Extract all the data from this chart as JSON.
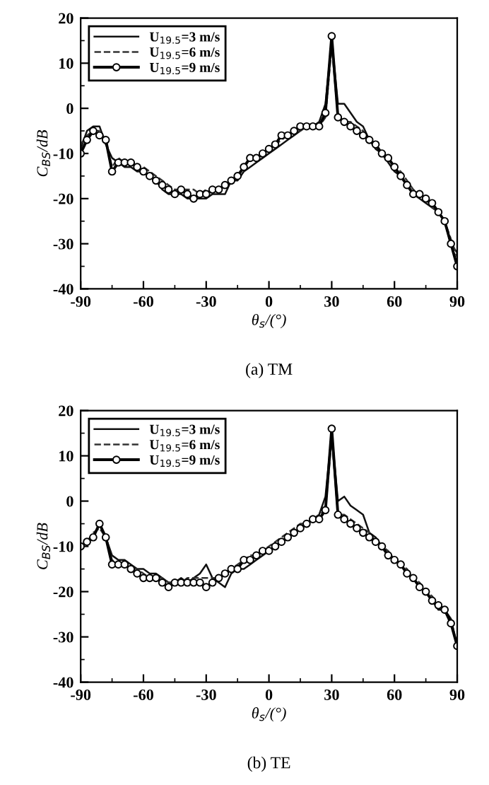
{
  "chart_data": [
    {
      "type": "line",
      "title": "(a) TM",
      "xlabel": "θ$_{s}$/(°)",
      "ylabel": "C$_{BS}$/dB",
      "x": [
        -90,
        -87,
        -84,
        -81,
        -78,
        -75,
        -72,
        -69,
        -66,
        -63,
        -60,
        -57,
        -54,
        -51,
        -48,
        -45,
        -42,
        -39,
        -36,
        -33,
        -30,
        -27,
        -24,
        -21,
        -18,
        -15,
        -12,
        -9,
        -6,
        -3,
        0,
        3,
        6,
        9,
        12,
        15,
        18,
        21,
        24,
        27,
        30,
        33,
        36,
        39,
        42,
        45,
        48,
        51,
        54,
        57,
        60,
        63,
        66,
        69,
        72,
        75,
        78,
        81,
        84,
        87,
        90
      ],
      "xlim": [
        -90,
        90
      ],
      "xticks": [
        -90,
        -60,
        -30,
        0,
        30,
        60,
        90
      ],
      "ylim": [
        -40,
        20
      ],
      "yticks": [
        -40,
        -30,
        -20,
        -10,
        0,
        10,
        20
      ],
      "grid": false,
      "legend": "top left",
      "series": [
        {
          "name": "U$_{19.5}$=3 m/s",
          "color": "#111111",
          "line_style": "solid",
          "marker": "none",
          "values": [
            -9,
            -5,
            -4,
            -4,
            -8,
            -11,
            -12,
            -13,
            -13,
            -14,
            -14,
            -15,
            -16,
            -18,
            -19,
            -19,
            -19,
            -20,
            -20,
            -20,
            -20,
            -19,
            -19,
            -19,
            -16,
            -16,
            -14,
            -13,
            -12,
            -11,
            -10,
            -9,
            -8,
            -7,
            -6,
            -5,
            -4,
            -4,
            -3,
            1,
            15,
            1,
            1,
            -1,
            -3,
            -4,
            -7,
            -9,
            -10,
            -12,
            -14,
            -15,
            -17,
            -19,
            -20,
            -21,
            -22,
            -23,
            -25,
            -30,
            -32
          ]
        },
        {
          "name": "U$_{19.5}$=6 m/s",
          "color": "#333333",
          "line_style": "dashed",
          "marker": "none",
          "values": [
            -8,
            -6,
            -5,
            -5,
            -7,
            -13,
            -11,
            -12,
            -12,
            -13,
            -13,
            -14,
            -15,
            -16,
            -17,
            -18,
            -18,
            -18,
            -18,
            -19,
            -18,
            -18,
            -18,
            -17,
            -16,
            -15,
            -13,
            -11,
            -11,
            -10,
            -9,
            -8,
            -7,
            -6,
            -5,
            -5,
            -4,
            -4,
            -4,
            -2,
            14,
            -2,
            -3,
            -3,
            -4,
            -5,
            -7,
            -8,
            -10,
            -11,
            -13,
            -14,
            -16,
            -18,
            -19,
            -20,
            -22,
            -23,
            -25,
            -29,
            -33
          ]
        },
        {
          "name": "U$_{19.5}$=9 m/s",
          "color": "#000000",
          "line_style": "solid",
          "marker": "circle",
          "values": [
            -10,
            -7,
            -5,
            -6,
            -7,
            -14,
            -12,
            -12,
            -12,
            -13,
            -14,
            -15,
            -16,
            -17,
            -18,
            -19,
            -18,
            -19,
            -20,
            -19,
            -19,
            -18,
            -18,
            -17,
            -16,
            -15,
            -13,
            -11,
            -11,
            -10,
            -9,
            -8,
            -6,
            -6,
            -5,
            -4,
            -4,
            -4,
            -4,
            -1,
            16,
            -2,
            -3,
            -4,
            -5,
            -6,
            -7,
            -8,
            -10,
            -11,
            -13,
            -15,
            -17,
            -19,
            -19,
            -20,
            -21,
            -23,
            -25,
            -30,
            -35
          ]
        }
      ]
    },
    {
      "type": "line",
      "title": "(b) TE",
      "xlabel": "θ$_{s}$/(°)",
      "ylabel": "C$_{BS}$/dB",
      "x": [
        -90,
        -87,
        -84,
        -81,
        -78,
        -75,
        -72,
        -69,
        -66,
        -63,
        -60,
        -57,
        -54,
        -51,
        -48,
        -45,
        -42,
        -39,
        -36,
        -33,
        -30,
        -27,
        -24,
        -21,
        -18,
        -15,
        -12,
        -9,
        -6,
        -3,
        0,
        3,
        6,
        9,
        12,
        15,
        18,
        21,
        24,
        27,
        30,
        33,
        36,
        39,
        42,
        45,
        48,
        51,
        54,
        57,
        60,
        63,
        66,
        69,
        72,
        75,
        78,
        81,
        84,
        87,
        90
      ],
      "xlim": [
        -90,
        90
      ],
      "xticks": [
        -90,
        -60,
        -30,
        0,
        30,
        60,
        90
      ],
      "ylim": [
        -40,
        20
      ],
      "yticks": [
        -40,
        -30,
        -20,
        -10,
        0,
        10,
        20
      ],
      "grid": false,
      "legend": "top left",
      "series": [
        {
          "name": "U$_{19.5}$=3 m/s",
          "color": "#111111",
          "line_style": "solid",
          "marker": "none",
          "values": [
            -10,
            -9,
            -8,
            -5,
            -8,
            -12,
            -13,
            -13,
            -14,
            -15,
            -15,
            -16,
            -16,
            -17,
            -18,
            -18,
            -17,
            -18,
            -17,
            -16,
            -14,
            -17,
            -18,
            -19,
            -16,
            -15,
            -15,
            -14,
            -13,
            -12,
            -11,
            -10,
            -9,
            -8,
            -7,
            -6,
            -5,
            -4,
            -3,
            1,
            15,
            0,
            1,
            -1,
            -2,
            -3,
            -7,
            -8,
            -10,
            -12,
            -13,
            -14,
            -16,
            -17,
            -19,
            -20,
            -22,
            -24,
            -24,
            -26,
            -32
          ]
        },
        {
          "name": "U$_{19.5}$=6 m/s",
          "color": "#333333",
          "line_style": "dashed",
          "marker": "none",
          "values": [
            -10,
            -9,
            -7,
            -6,
            -8,
            -13,
            -14,
            -14,
            -15,
            -15,
            -16,
            -17,
            -17,
            -17,
            -18,
            -18,
            -18,
            -17,
            -17,
            -17,
            -17,
            -17,
            -17,
            -16,
            -15,
            -14,
            -13,
            -12,
            -12,
            -11,
            -10,
            -9,
            -8,
            -7,
            -6,
            -5,
            -5,
            -4,
            -3,
            -2,
            14,
            -3,
            -3,
            -4,
            -5,
            -6,
            -7,
            -9,
            -10,
            -11,
            -13,
            -14,
            -15,
            -17,
            -18,
            -20,
            -21,
            -23,
            -24,
            -27,
            -32
          ]
        },
        {
          "name": "U$_{19.5}$=9 m/s",
          "color": "#000000",
          "line_style": "solid",
          "marker": "circle",
          "values": [
            -10,
            -9,
            -8,
            -5,
            -8,
            -14,
            -14,
            -14,
            -15,
            -16,
            -17,
            -17,
            -17,
            -18,
            -19,
            -18,
            -18,
            -18,
            -18,
            -18,
            -19,
            -18,
            -17,
            -16,
            -15,
            -15,
            -13,
            -13,
            -12,
            -11,
            -11,
            -10,
            -9,
            -8,
            -7,
            -6,
            -5,
            -4,
            -4,
            -2,
            16,
            -3,
            -4,
            -5,
            -6,
            -7,
            -8,
            -9,
            -10,
            -12,
            -13,
            -14,
            -16,
            -17,
            -19,
            -20,
            -22,
            -23,
            -24,
            -27,
            -32
          ]
        }
      ]
    }
  ]
}
